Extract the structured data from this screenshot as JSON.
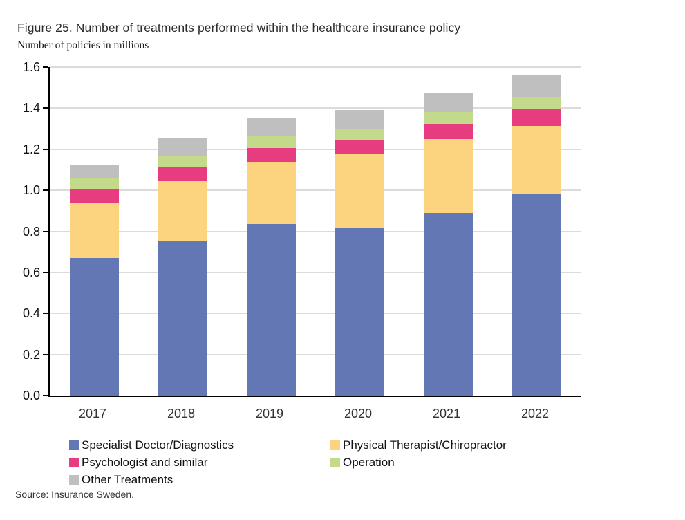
{
  "chart_data": {
    "type": "bar",
    "stacked": true,
    "title": "Figure 25. Number of treatments performed within the healthcare insurance policy",
    "subtitle": "Number of policies in millions",
    "source": "Source: Insurance Sweden.",
    "categories": [
      "2017",
      "2018",
      "2019",
      "2020",
      "2021",
      "2022"
    ],
    "series": [
      {
        "name": "Specialist Doctor/Diagnostics",
        "color": "#6377B4",
        "values": [
          0.67,
          0.755,
          0.835,
          0.815,
          0.89,
          0.98
        ]
      },
      {
        "name": "Physical Therapist/Chiropractor",
        "color": "#FCD37E",
        "values": [
          0.27,
          0.29,
          0.305,
          0.36,
          0.36,
          0.335
        ]
      },
      {
        "name": "Psychologist and similar",
        "color": "#E73D80",
        "values": [
          0.065,
          0.065,
          0.065,
          0.07,
          0.07,
          0.08
        ]
      },
      {
        "name": "Operation",
        "color": "#C4DA8B",
        "values": [
          0.055,
          0.06,
          0.06,
          0.055,
          0.06,
          0.06
        ]
      },
      {
        "name": "Other Treatments",
        "color": "#BFBFBF",
        "values": [
          0.065,
          0.085,
          0.09,
          0.09,
          0.095,
          0.105
        ]
      }
    ],
    "ylim": [
      0.0,
      1.6
    ],
    "ytick_labels": [
      "0.0",
      "0.2",
      "0.4",
      "0.6",
      "0.8",
      "1.0",
      "1.2",
      "1.4",
      "1.6"
    ],
    "grid": true,
    "legend_position": "bottom",
    "axis_color": "#000000",
    "grid_color": "#dbdbdb"
  }
}
